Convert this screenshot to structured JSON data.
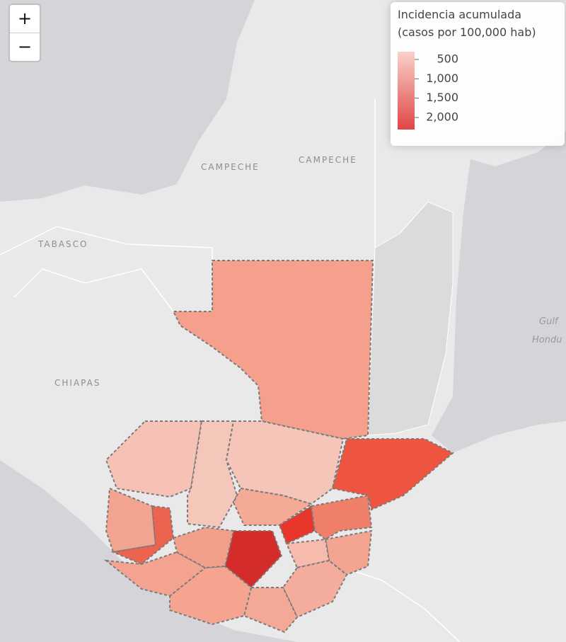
{
  "zoom_controls": {
    "zoom_in": "+",
    "zoom_out": "−"
  },
  "legend": {
    "title_lines": [
      "Incidencia acumulada",
      "(casos por 100,000 hab)"
    ],
    "colors": [
      "#f9d2c9",
      "#e04646"
    ],
    "ticks": [
      500,
      {
        "value": 1000,
        "label": "1,000"
      },
      {
        "value": 1500,
        "label": "1,500"
      },
      {
        "value": 2000,
        "label": "2,000"
      }
    ]
  },
  "map_labels": {
    "campeche_1": "CAMPECHE",
    "campeche_2": "CAMPECHE",
    "tabasco": "TABASCO",
    "chiapas": "CHIAPAS",
    "gulf": "Gulf",
    "honduras_cut": "Hondu"
  }
}
